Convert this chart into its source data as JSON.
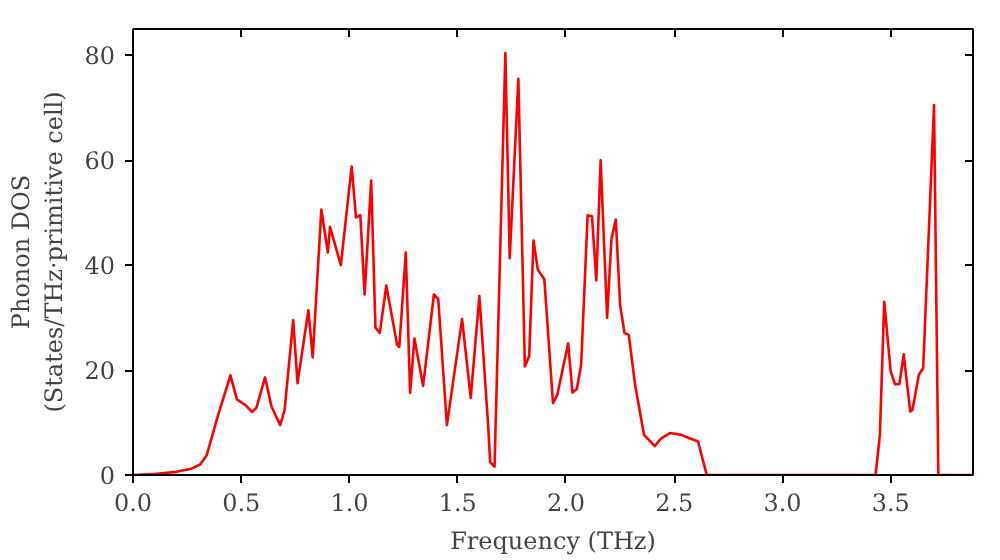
{
  "chart_data": {
    "type": "line",
    "xlabel": "Frequency (THz)",
    "ylabel": "Phonon DOS\n(States/THz·primitive cell)",
    "xlim": [
      0,
      3.88
    ],
    "ylim": [
      0,
      85
    ],
    "xticks": [
      {
        "value": 0,
        "label": "0.0"
      },
      {
        "value": 0.5,
        "label": "0.5"
      },
      {
        "value": 1,
        "label": "1.0"
      },
      {
        "value": 1.5,
        "label": "1.5"
      },
      {
        "value": 2,
        "label": "2.0"
      },
      {
        "value": 2.5,
        "label": "2.5"
      },
      {
        "value": 3,
        "label": "3.0"
      },
      {
        "value": 3.5,
        "label": "3.5"
      }
    ],
    "yticks": [
      0,
      20,
      40,
      60,
      80
    ],
    "grid": false,
    "line_style": "solid",
    "series": [
      {
        "color": "#ff0000",
        "x": [
          0,
          0.1,
          0.2,
          0.27,
          0.31,
          0.34,
          0.39,
          0.45,
          0.48,
          0.52,
          0.55,
          0.57,
          0.61,
          0.64,
          0.68,
          0.7,
          0.74,
          0.76,
          0.81,
          0.83,
          0.87,
          0.9,
          0.91,
          0.96,
          1.01,
          1.03,
          1.05,
          1.07,
          1.1,
          1.12,
          1.14,
          1.17,
          1.22,
          1.23,
          1.26,
          1.28,
          1.3,
          1.34,
          1.39,
          1.41,
          1.45,
          1.52,
          1.56,
          1.6,
          1.64,
          1.65,
          1.67,
          1.72,
          1.74,
          1.78,
          1.81,
          1.83,
          1.85,
          1.87,
          1.9,
          1.94,
          1.96,
          2.01,
          2.03,
          2.05,
          2.07,
          2.1,
          2.12,
          2.14,
          2.16,
          2.19,
          2.21,
          2.23,
          2.25,
          2.27,
          2.29,
          2.32,
          2.36,
          2.41,
          2.44,
          2.48,
          2.53,
          2.57,
          2.61,
          2.65,
          3.43,
          3.45,
          3.47,
          3.5,
          3.52,
          3.54,
          3.56,
          3.59,
          3.6,
          3.63,
          3.65,
          3.7,
          3.72,
          3.88
        ],
        "values": [
          0,
          0.2,
          0.6,
          1.2,
          2.0,
          3.7,
          11,
          19,
          14.4,
          13.3,
          12,
          12.8,
          18.6,
          13,
          9.5,
          12.3,
          29.5,
          17.5,
          31.4,
          22.4,
          50.6,
          42.4,
          47.3,
          40,
          58.8,
          49.1,
          49.5,
          34.4,
          56.1,
          28.1,
          27.1,
          36.1,
          24.8,
          24.4,
          42.4,
          15.7,
          26,
          17,
          34.4,
          33.5,
          9.5,
          29.7,
          14.7,
          34.1,
          9.7,
          2.4,
          1.6,
          80.4,
          41.3,
          75.5,
          20.7,
          22.7,
          44.7,
          39.1,
          37.3,
          13.7,
          15.3,
          25.1,
          15.7,
          16.4,
          21,
          49.5,
          49.3,
          37.1,
          60,
          30,
          45,
          48.7,
          32.4,
          27.1,
          26.7,
          17,
          7.7,
          5.5,
          7,
          8,
          7.7,
          7,
          6.4,
          0,
          0,
          7.7,
          33,
          19.7,
          17.3,
          17.3,
          23,
          12.1,
          12.4,
          19.1,
          20.4,
          70.5,
          0,
          0
        ]
      }
    ]
  }
}
